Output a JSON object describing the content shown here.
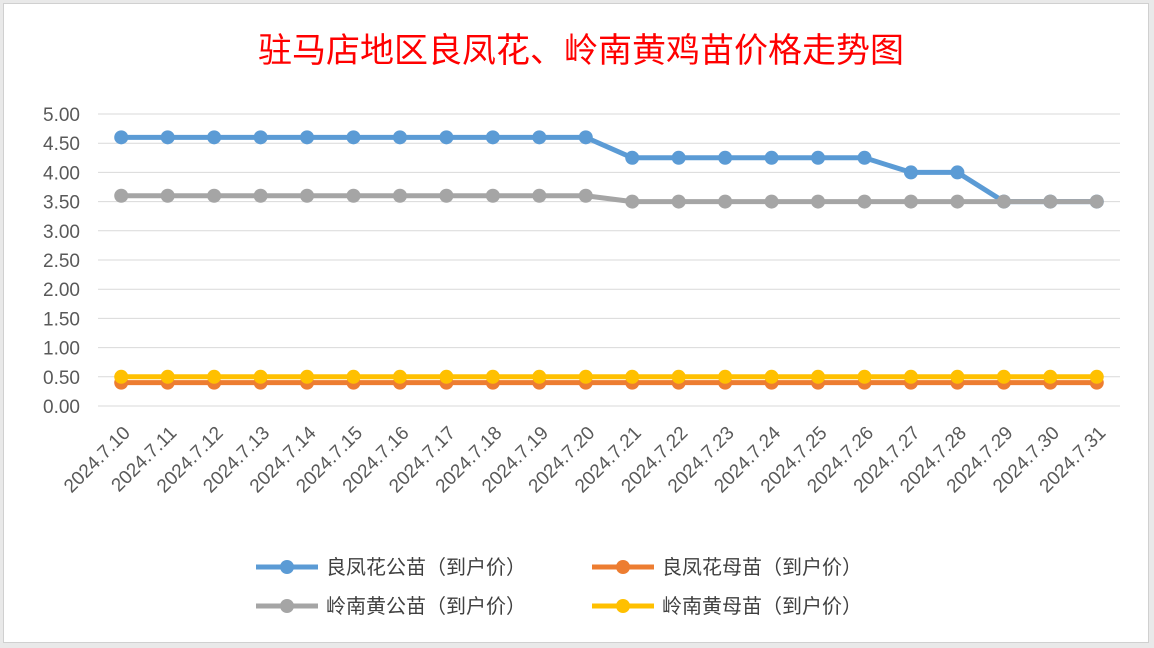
{
  "chart_data": {
    "type": "line",
    "title": "驻马店地区良凤花、岭南黄鸡苗价格走势图",
    "xlabel": "",
    "ylabel": "",
    "ylim": [
      0,
      5
    ],
    "yticks": [
      "0.00",
      "0.50",
      "1.00",
      "1.50",
      "2.00",
      "2.50",
      "3.00",
      "3.50",
      "4.00",
      "4.50",
      "5.00"
    ],
    "grid": true,
    "legend_position": "bottom",
    "categories": [
      "2024.7.10",
      "2024.7.11",
      "2024.7.12",
      "2024.7.13",
      "2024.7.14",
      "2024.7.15",
      "2024.7.16",
      "2024.7.17",
      "2024.7.18",
      "2024.7.19",
      "2024.7.20",
      "2024.7.21",
      "2024.7.22",
      "2024.7.23",
      "2024.7.24",
      "2024.7.25",
      "2024.7.26",
      "2024.7.27",
      "2024.7.28",
      "2024.7.29",
      "2024.7.30",
      "2024.7.31"
    ],
    "series": [
      {
        "name": "良凤花公苗（到户价）",
        "color": "#5b9bd5",
        "values": [
          4.6,
          4.6,
          4.6,
          4.6,
          4.6,
          4.6,
          4.6,
          4.6,
          4.6,
          4.6,
          4.6,
          4.25,
          4.25,
          4.25,
          4.25,
          4.25,
          4.25,
          4.0,
          4.0,
          3.5,
          3.5,
          3.5
        ]
      },
      {
        "name": "良凤花母苗（到户价）",
        "color": "#ed7d31",
        "values": [
          0.4,
          0.4,
          0.4,
          0.4,
          0.4,
          0.4,
          0.4,
          0.4,
          0.4,
          0.4,
          0.4,
          0.4,
          0.4,
          0.4,
          0.4,
          0.4,
          0.4,
          0.4,
          0.4,
          0.4,
          0.4,
          0.4
        ]
      },
      {
        "name": "岭南黄公苗（到户价）",
        "color": "#a5a5a5",
        "values": [
          3.6,
          3.6,
          3.6,
          3.6,
          3.6,
          3.6,
          3.6,
          3.6,
          3.6,
          3.6,
          3.6,
          3.5,
          3.5,
          3.5,
          3.5,
          3.5,
          3.5,
          3.5,
          3.5,
          3.5,
          3.5,
          3.5
        ]
      },
      {
        "name": "岭南黄母苗（到户价）",
        "color": "#ffc000",
        "values": [
          0.5,
          0.5,
          0.5,
          0.5,
          0.5,
          0.5,
          0.5,
          0.5,
          0.5,
          0.5,
          0.5,
          0.5,
          0.5,
          0.5,
          0.5,
          0.5,
          0.5,
          0.5,
          0.5,
          0.5,
          0.5,
          0.5
        ]
      }
    ],
    "title_color": "#ff0000",
    "grid_color": "#d9d9d9"
  }
}
